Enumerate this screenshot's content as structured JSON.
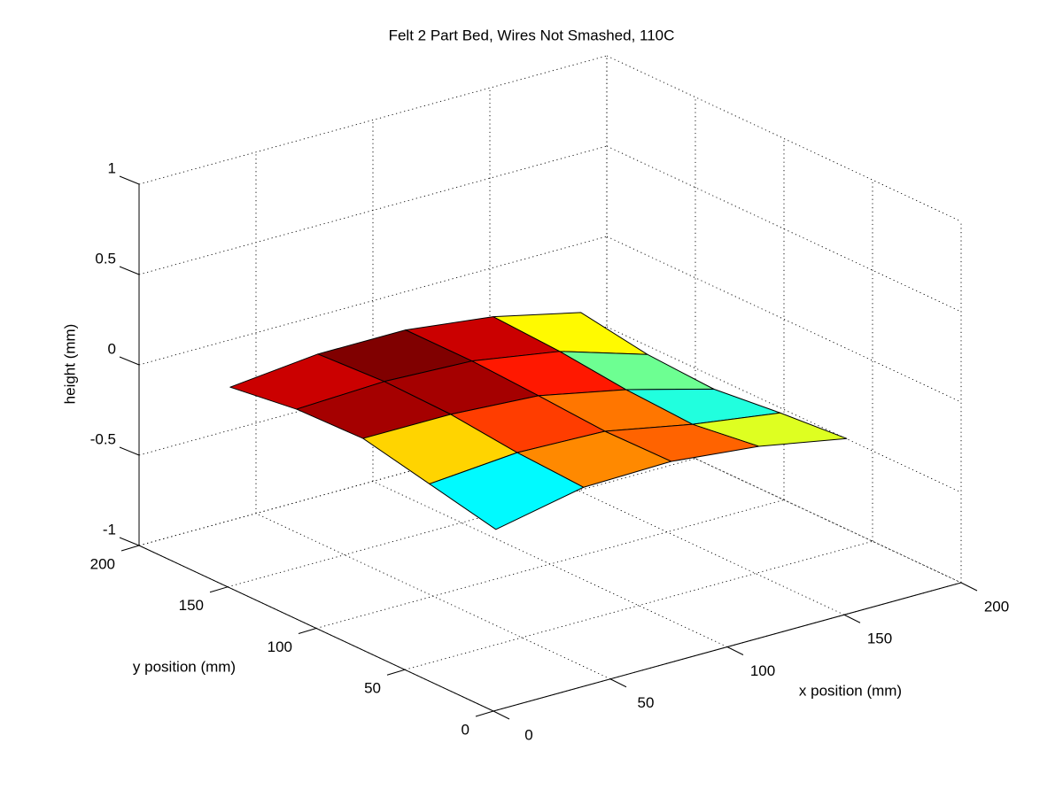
{
  "chart_data": {
    "type": "surface",
    "title": "Felt 2 Part  Bed, Wires Not Smashed, 110C",
    "xlabel": "x position (mm)",
    "ylabel": "y position (mm)",
    "zlabel": "height (mm)",
    "x": [
      20,
      57.5,
      95,
      132.5,
      170
    ],
    "y": [
      25,
      62.5,
      100,
      137.5,
      175
    ],
    "z": [
      [
        -0.18,
        -0.08,
        -0.07,
        -0.12,
        -0.21
      ],
      [
        -0.1,
        -0.06,
        -0.075,
        -0.17,
        -0.24
      ],
      [
        -0.02,
        -0.02,
        -0.05,
        -0.15,
        -0.28
      ],
      [
        -0.03,
        -0.01,
        -0.03,
        -0.11,
        -0.26
      ],
      [
        -0.08,
        -0.03,
        -0.03,
        -0.09,
        -0.2
      ]
    ],
    "xlim": [
      0,
      200
    ],
    "ylim": [
      0,
      200
    ],
    "zlim": [
      -1,
      1
    ],
    "xticks": [
      0,
      50,
      100,
      150,
      200
    ],
    "yticks": [
      0,
      50,
      100,
      150,
      200
    ],
    "zticks": [
      -1,
      -0.5,
      0,
      0.5,
      1
    ],
    "grid": true,
    "colormap": "jet",
    "edge_color": "#000000"
  }
}
